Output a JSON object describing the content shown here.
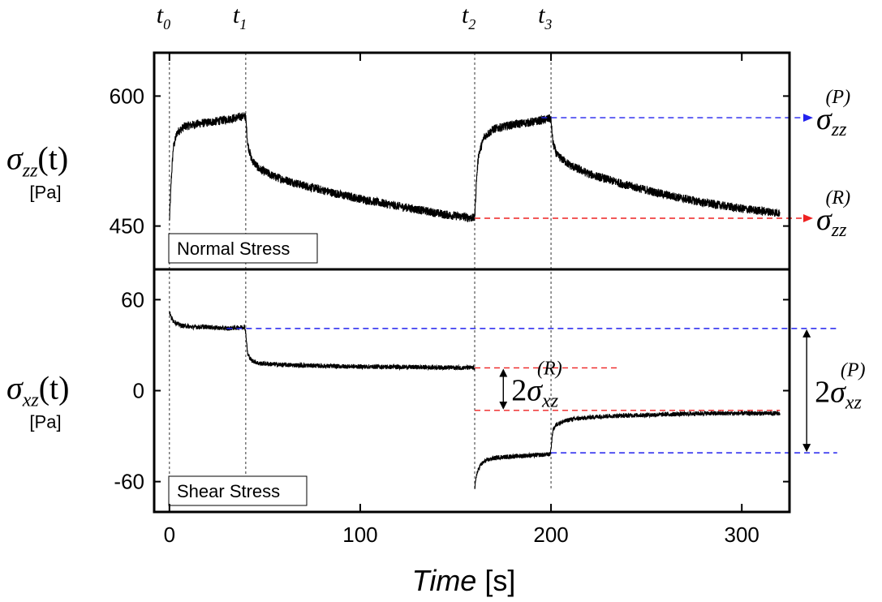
{
  "chart_data": {
    "type": "line",
    "xlabel": {
      "italic": "Time",
      "unit": "[s]"
    },
    "xlim": [
      -8,
      325
    ],
    "xticks": [
      0,
      100,
      200,
      300
    ],
    "time_markers": [
      {
        "label": "t",
        "sub": "0",
        "x": 0
      },
      {
        "label": "t",
        "sub": "1",
        "x": 40
      },
      {
        "label": "t",
        "sub": "2",
        "x": 160
      },
      {
        "label": "t",
        "sub": "3",
        "x": 200
      }
    ],
    "panels": [
      {
        "id": "normal",
        "box_label": "Normal Stress",
        "ylabel": {
          "sym": "σ",
          "sub": "zz",
          "arg": "(t)",
          "unit": "[Pa]"
        },
        "ylim": [
          400,
          650
        ],
        "yticks": [
          450,
          600
        ],
        "series": [
          {
            "points": [
              [
                0,
                455
              ],
              [
                1,
                505
              ],
              [
                2,
                540
              ],
              [
                4,
                558
              ],
              [
                8,
                565
              ],
              [
                15,
                568
              ],
              [
                25,
                571
              ],
              [
                35,
                575
              ],
              [
                39.5,
                577
              ],
              [
                40,
                575
              ],
              [
                41,
                545
              ],
              [
                43,
                527
              ],
              [
                47,
                516
              ],
              [
                55,
                507
              ],
              [
                70,
                497
              ],
              [
                90,
                486
              ],
              [
                110,
                477
              ],
              [
                130,
                469
              ],
              [
                145,
                463
              ],
              [
                160,
                459
              ]
            ],
            "noise": 5
          },
          {
            "points": [
              [
                160,
                459
              ],
              [
                161,
                505
              ],
              [
                162,
                532
              ],
              [
                165,
                553
              ],
              [
                170,
                562
              ],
              [
                180,
                567
              ],
              [
                190,
                570
              ],
              [
                199.5,
                574
              ],
              [
                200,
                572
              ],
              [
                201,
                546
              ],
              [
                203,
                532
              ],
              [
                210,
                520
              ],
              [
                220,
                510
              ],
              [
                240,
                497
              ],
              [
                260,
                486
              ],
              [
                280,
                477
              ],
              [
                300,
                470
              ],
              [
                320,
                465
              ]
            ],
            "noise": 5
          }
        ],
        "reference_lines": [
          {
            "y": 575,
            "from": 195,
            "color": "#2222ee",
            "arrow": true,
            "label": {
              "sym": "σ",
              "sub": "zz",
              "sup": "(P)"
            }
          },
          {
            "y": 459,
            "from": 160,
            "color": "#ee2222",
            "arrow": true,
            "label": {
              "sym": "σ",
              "sub": "zz",
              "sup": "(R)"
            }
          }
        ]
      },
      {
        "id": "shear",
        "box_label": "Shear Stress",
        "ylabel": {
          "sym": "σ",
          "sub": "xz",
          "arg": "(t)",
          "unit": "[Pa]"
        },
        "ylim": [
          -80,
          80
        ],
        "yticks": [
          -60,
          0,
          60
        ],
        "series": [
          {
            "points": [
              [
                0,
                52
              ],
              [
                1,
                48
              ],
              [
                3,
                45
              ],
              [
                6,
                43
              ],
              [
                12,
                42
              ],
              [
                20,
                42
              ],
              [
                30,
                41
              ],
              [
                39.5,
                42
              ],
              [
                40,
                38
              ],
              [
                41,
                24
              ],
              [
                43,
                20
              ],
              [
                47,
                18
              ],
              [
                60,
                17
              ],
              [
                90,
                16
              ],
              [
                130,
                15.5
              ],
              [
                160,
                15
              ]
            ],
            "noise": 1.5
          },
          {
            "points": [
              [
                160,
                -65
              ],
              [
                161,
                -55
              ],
              [
                163,
                -49
              ],
              [
                166,
                -46
              ],
              [
                172,
                -44
              ],
              [
                185,
                -43
              ],
              [
                199.5,
                -42
              ],
              [
                200,
                -38
              ],
              [
                201,
                -26
              ],
              [
                203,
                -22
              ],
              [
                210,
                -19
              ],
              [
                225,
                -17
              ],
              [
                250,
                -16
              ],
              [
                280,
                -15
              ],
              [
                320,
                -15
              ]
            ],
            "noise": 1.5
          }
        ],
        "reference_lines": [
          {
            "y": 41,
            "from": 30,
            "to": 350,
            "color": "#2222ee"
          },
          {
            "y": -41,
            "from": 200,
            "to": 350,
            "color": "#2222ee"
          },
          {
            "y": 15,
            "from": 160,
            "to": 236,
            "color": "#ee2222"
          },
          {
            "y": -13,
            "from": 160,
            "to": 320,
            "color": "#ee2222"
          }
        ],
        "brackets": [
          {
            "x": 175,
            "y1": 15,
            "y2": -13,
            "label": {
              "coef": "2",
              "sym": "σ",
              "sub": "xz",
              "sup": "(R)"
            }
          },
          {
            "x": 334,
            "y1": 41,
            "y2": -41,
            "label": {
              "coef": "2",
              "sym": "σ",
              "sub": "xz",
              "sup": "(P)"
            }
          }
        ]
      }
    ]
  }
}
